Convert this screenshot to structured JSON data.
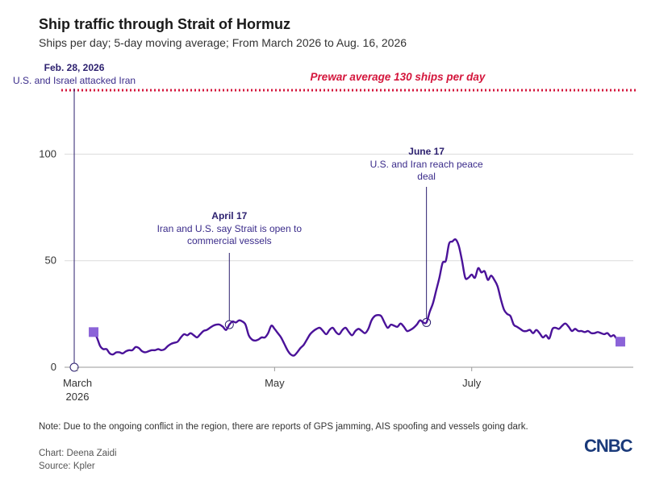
{
  "header": {
    "title": "Ship traffic through Strait of Hormuz",
    "subtitle": "Ships per day; 5-day moving average; From March 2026 to Aug. 16, 2026"
  },
  "footer": {
    "note": "Note: Due to the ongoing conflict in the region, there are reports of GPS jamming, AIS spoofing and vessels going dark.",
    "credit": "Chart: Deena Zaidi",
    "source": "Source: Kpler",
    "logo": "CNBC"
  },
  "colors": {
    "line": "#4a1299",
    "marker": "#8b63d8",
    "reference": "#d4163c",
    "annotation": "#2b1f6e",
    "grid": "#dcdcdc"
  },
  "chart_data": {
    "type": "line",
    "title": "Ship traffic through Strait of Hormuz",
    "subtitle": "Ships per day; 5-day moving average; From March 2026 to Aug. 16, 2026",
    "xlabel": "",
    "ylabel": "",
    "ylim": [
      0,
      130
    ],
    "xlim": [
      "2026-02-25",
      "2026-08-20"
    ],
    "grid": true,
    "y_ticks": [
      {
        "value": 0,
        "label": "0"
      },
      {
        "value": 50,
        "label": "50"
      },
      {
        "value": 100,
        "label": "100"
      }
    ],
    "x_ticks": [
      {
        "date": "2026-03-01",
        "label": "March",
        "sublabel": "2026"
      },
      {
        "date": "2026-05-01",
        "label": "May",
        "sublabel": ""
      },
      {
        "date": "2026-07-01",
        "label": "July",
        "sublabel": ""
      }
    ],
    "reference_line": {
      "value": 130,
      "label": "Prewar average 130 ships per day"
    },
    "annotations": [
      {
        "date": "2026-02-28",
        "value": 0,
        "head": "Feb. 28, 2026",
        "body": [
          "U.S. and Israel attacked Iran"
        ]
      },
      {
        "date": "2026-04-17",
        "value": 20,
        "head": "April 17",
        "body": [
          "Iran and U.S. say Strait is open to",
          "commercial vessels"
        ]
      },
      {
        "date": "2026-06-17",
        "value": 21,
        "head": "June 17",
        "body": [
          "U.S. and Iran reach peace",
          "deal"
        ]
      }
    ],
    "series": [
      {
        "points": [
          [
            "2026-03-06",
            16.5
          ],
          [
            "2026-03-07",
            14
          ],
          [
            "2026-03-08",
            10
          ],
          [
            "2026-03-09",
            8.5
          ],
          [
            "2026-03-10",
            8.5
          ],
          [
            "2026-03-11",
            6.5
          ],
          [
            "2026-03-12",
            6
          ],
          [
            "2026-03-13",
            7
          ],
          [
            "2026-03-14",
            7
          ],
          [
            "2026-03-15",
            6.5
          ],
          [
            "2026-03-16",
            7.5
          ],
          [
            "2026-03-17",
            8
          ],
          [
            "2026-03-18",
            8
          ],
          [
            "2026-03-19",
            9.5
          ],
          [
            "2026-03-20",
            9
          ],
          [
            "2026-03-21",
            7.5
          ],
          [
            "2026-03-22",
            7
          ],
          [
            "2026-03-23",
            7.5
          ],
          [
            "2026-03-24",
            8
          ],
          [
            "2026-03-25",
            8
          ],
          [
            "2026-03-26",
            8.5
          ],
          [
            "2026-03-27",
            8
          ],
          [
            "2026-03-28",
            8.5
          ],
          [
            "2026-03-29",
            10
          ],
          [
            "2026-03-30",
            11
          ],
          [
            "2026-03-31",
            11.5
          ],
          [
            "2026-04-01",
            12
          ],
          [
            "2026-04-02",
            14
          ],
          [
            "2026-04-03",
            15.5
          ],
          [
            "2026-04-04",
            15
          ],
          [
            "2026-04-05",
            16
          ],
          [
            "2026-04-06",
            15
          ],
          [
            "2026-04-07",
            14
          ],
          [
            "2026-04-08",
            15.5
          ],
          [
            "2026-04-09",
            17
          ],
          [
            "2026-04-10",
            17.5
          ],
          [
            "2026-04-11",
            18.5
          ],
          [
            "2026-04-12",
            19.5
          ],
          [
            "2026-04-13",
            20
          ],
          [
            "2026-04-14",
            20
          ],
          [
            "2026-04-15",
            19
          ],
          [
            "2026-04-16",
            17.5
          ],
          [
            "2026-04-17",
            20
          ],
          [
            "2026-04-18",
            21.5
          ],
          [
            "2026-04-19",
            21
          ],
          [
            "2026-04-20",
            22
          ],
          [
            "2026-04-21",
            21.5
          ],
          [
            "2026-04-22",
            20
          ],
          [
            "2026-04-23",
            15
          ],
          [
            "2026-04-24",
            13
          ],
          [
            "2026-04-25",
            12.5
          ],
          [
            "2026-04-26",
            13
          ],
          [
            "2026-04-27",
            14
          ],
          [
            "2026-04-28",
            14
          ],
          [
            "2026-04-29",
            16
          ],
          [
            "2026-04-30",
            19.5
          ],
          [
            "2026-05-01",
            18
          ],
          [
            "2026-05-02",
            16
          ],
          [
            "2026-05-03",
            14
          ],
          [
            "2026-05-04",
            11
          ],
          [
            "2026-05-05",
            8
          ],
          [
            "2026-05-06",
            6
          ],
          [
            "2026-05-07",
            5.5
          ],
          [
            "2026-05-08",
            7
          ],
          [
            "2026-05-09",
            9
          ],
          [
            "2026-05-10",
            10.5
          ],
          [
            "2026-05-11",
            13
          ],
          [
            "2026-05-12",
            15.5
          ],
          [
            "2026-05-13",
            17
          ],
          [
            "2026-05-14",
            18
          ],
          [
            "2026-05-15",
            18.5
          ],
          [
            "2026-05-16",
            17
          ],
          [
            "2026-05-17",
            15.5
          ],
          [
            "2026-05-18",
            17.5
          ],
          [
            "2026-05-19",
            18.5
          ],
          [
            "2026-05-20",
            16.5
          ],
          [
            "2026-05-21",
            15.5
          ],
          [
            "2026-05-22",
            17.5
          ],
          [
            "2026-05-23",
            18.5
          ],
          [
            "2026-05-24",
            16.5
          ],
          [
            "2026-05-25",
            15
          ],
          [
            "2026-05-26",
            17
          ],
          [
            "2026-05-27",
            18
          ],
          [
            "2026-05-28",
            17
          ],
          [
            "2026-05-29",
            16
          ],
          [
            "2026-05-30",
            18
          ],
          [
            "2026-05-31",
            22
          ],
          [
            "2026-06-01",
            24
          ],
          [
            "2026-06-02",
            24.5
          ],
          [
            "2026-06-03",
            24
          ],
          [
            "2026-06-04",
            21
          ],
          [
            "2026-06-05",
            18.5
          ],
          [
            "2026-06-06",
            20
          ],
          [
            "2026-06-07",
            19.5
          ],
          [
            "2026-06-08",
            19
          ],
          [
            "2026-06-09",
            20.5
          ],
          [
            "2026-06-10",
            19
          ],
          [
            "2026-06-11",
            17
          ],
          [
            "2026-06-12",
            17.5
          ],
          [
            "2026-06-13",
            18.5
          ],
          [
            "2026-06-14",
            20
          ],
          [
            "2026-06-15",
            22
          ],
          [
            "2026-06-16",
            21
          ],
          [
            "2026-06-17",
            21
          ],
          [
            "2026-06-18",
            26
          ],
          [
            "2026-06-19",
            30
          ],
          [
            "2026-06-20",
            36
          ],
          [
            "2026-06-21",
            42
          ],
          [
            "2026-06-22",
            49
          ],
          [
            "2026-06-23",
            50
          ],
          [
            "2026-06-24",
            58
          ],
          [
            "2026-06-25",
            59
          ],
          [
            "2026-06-26",
            60
          ],
          [
            "2026-06-27",
            57
          ],
          [
            "2026-06-28",
            50
          ],
          [
            "2026-06-29",
            42
          ],
          [
            "2026-06-30",
            42
          ],
          [
            "2026-07-01",
            43.5
          ],
          [
            "2026-07-02",
            42
          ],
          [
            "2026-07-03",
            46.5
          ],
          [
            "2026-07-04",
            44.5
          ],
          [
            "2026-07-05",
            45
          ],
          [
            "2026-07-06",
            41
          ],
          [
            "2026-07-07",
            43
          ],
          [
            "2026-07-08",
            41
          ],
          [
            "2026-07-09",
            38
          ],
          [
            "2026-07-10",
            32
          ],
          [
            "2026-07-11",
            27
          ],
          [
            "2026-07-12",
            25
          ],
          [
            "2026-07-13",
            24
          ],
          [
            "2026-07-14",
            20
          ],
          [
            "2026-07-15",
            19
          ],
          [
            "2026-07-16",
            18
          ],
          [
            "2026-07-17",
            17
          ],
          [
            "2026-07-18",
            17
          ],
          [
            "2026-07-19",
            17.5
          ],
          [
            "2026-07-20",
            16
          ],
          [
            "2026-07-21",
            17.5
          ],
          [
            "2026-07-22",
            16
          ],
          [
            "2026-07-23",
            14
          ],
          [
            "2026-07-24",
            15
          ],
          [
            "2026-07-25",
            13.5
          ],
          [
            "2026-07-26",
            18
          ],
          [
            "2026-07-27",
            18.5
          ],
          [
            "2026-07-28",
            18
          ],
          [
            "2026-07-29",
            19.5
          ],
          [
            "2026-07-30",
            20.5
          ],
          [
            "2026-07-31",
            19
          ],
          [
            "2026-08-01",
            17
          ],
          [
            "2026-08-02",
            18
          ],
          [
            "2026-08-03",
            17
          ],
          [
            "2026-08-04",
            17
          ],
          [
            "2026-08-05",
            16.5
          ],
          [
            "2026-08-06",
            17
          ],
          [
            "2026-08-07",
            16
          ],
          [
            "2026-08-08",
            16
          ],
          [
            "2026-08-09",
            16.5
          ],
          [
            "2026-08-10",
            16
          ],
          [
            "2026-08-11",
            15.5
          ],
          [
            "2026-08-12",
            16
          ],
          [
            "2026-08-13",
            14.5
          ],
          [
            "2026-08-14",
            15
          ],
          [
            "2026-08-15",
            13
          ],
          [
            "2026-08-16",
            12
          ]
        ],
        "start_marker": [
          "2026-03-06",
          16.5
        ],
        "end_marker": [
          "2026-08-16",
          12
        ]
      }
    ]
  }
}
